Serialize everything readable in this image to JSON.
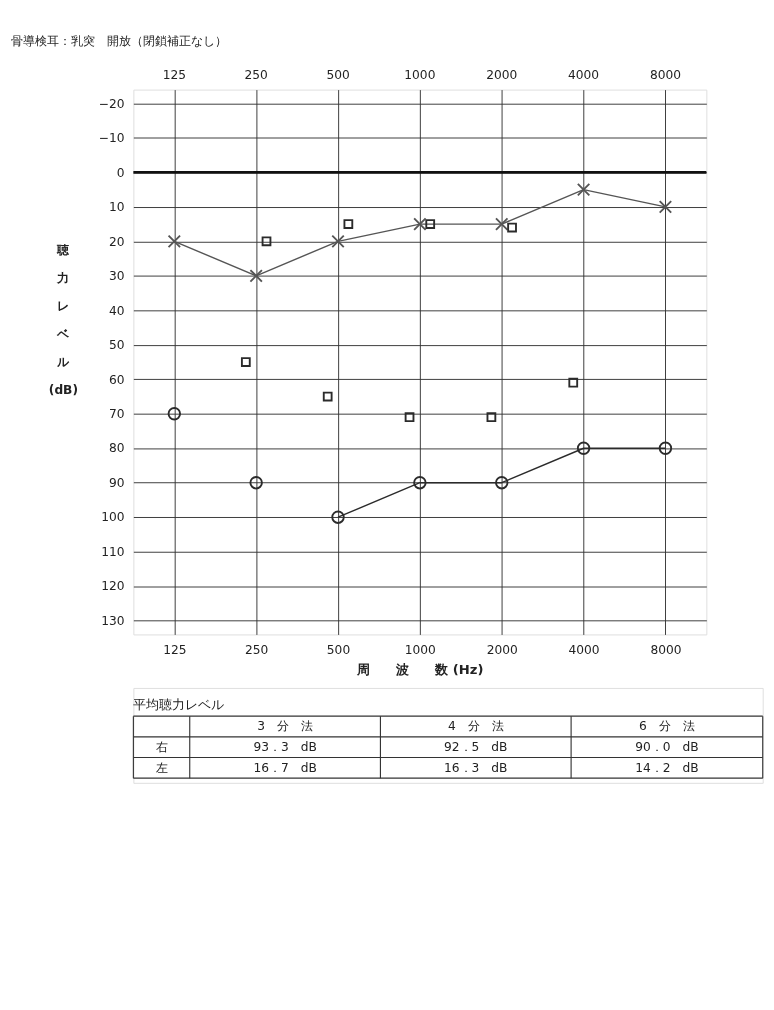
{
  "chart_data": {
    "type": "line",
    "title": "骨導検耳：乳突　開放（閉鎖補正なし）",
    "xlabel": "周　　波　　数 (Hz)",
    "ylabel": "聴力レベル(dB)",
    "categories": [
      "125",
      "250",
      "500",
      "1000",
      "2000",
      "4000",
      "8000"
    ],
    "series": [
      {
        "marker": "circle",
        "color": "#2b2b2b",
        "values": [
          null,
          null,
          100,
          90,
          90,
          80,
          80
        ]
      },
      {
        "type": "scatter",
        "marker": "circle",
        "color": "#2b2b2b",
        "values": [
          70,
          90,
          null,
          null,
          null,
          null,
          null
        ]
      },
      {
        "marker": "cross",
        "color": "#555555",
        "values": [
          20,
          30,
          20,
          15,
          15,
          5,
          10
        ]
      },
      {
        "type": "scatter",
        "marker": "square",
        "color": "#2b2b2b",
        "values": [
          null,
          55,
          65,
          71,
          71,
          61,
          null
        ]
      },
      {
        "type": "scatter",
        "marker": "square",
        "color": "#2b2b2b",
        "values": [
          null,
          20,
          15,
          15,
          16,
          null,
          null
        ]
      }
    ],
    "ylim": [
      134,
      -24
    ],
    "yticks": [
      -20,
      -10,
      0,
      10,
      20,
      30,
      40,
      50,
      60,
      70,
      80,
      90,
      100,
      110,
      120,
      130
    ],
    "ref_lines": [
      {
        "axis": "y",
        "value": 0,
        "color": "#111111"
      }
    ],
    "grid": true,
    "legend": false,
    "annotations": [
      "平均聴力レベル",
      "3　分　法",
      "4　分　法",
      "6　分　法",
      "右",
      "93．3　dB",
      "92．5　dB",
      "90．0　dB",
      "左",
      "16．7　dB",
      "16．3　dB",
      "14．2　dB"
    ]
  }
}
